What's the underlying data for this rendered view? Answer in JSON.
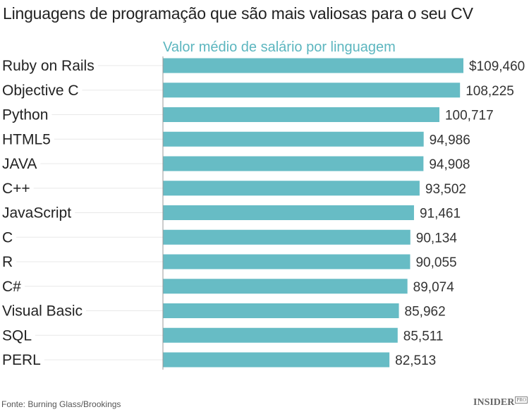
{
  "chart_data": {
    "type": "bar",
    "orientation": "horizontal",
    "title": "Linguagens de programação que são mais valiosas para o seu CV",
    "subtitle": "Valor médio de salário por linguagem",
    "categories": [
      "Ruby on Rails",
      "Objective C",
      "Python",
      "HTML5",
      "JAVA",
      "C++",
      "JavaScript",
      "C",
      "R",
      "C#",
      "Visual Basic",
      "SQL",
      "PERL"
    ],
    "values": [
      109460,
      108225,
      100717,
      94986,
      94908,
      93502,
      91461,
      90134,
      90055,
      89074,
      85962,
      85511,
      82513
    ],
    "value_labels": [
      "$109,460",
      "108,225",
      "100,717",
      "94,986",
      "94,908",
      "93,502",
      "91,461",
      "90,134",
      "90,055",
      "89,074",
      "85,962",
      "85,511",
      "82,513"
    ],
    "xlim": [
      0,
      133000
    ],
    "bar_color": "#67bcc5",
    "grid": false
  },
  "footer": {
    "source": "Fonte: Burning Glass/Brookings",
    "logo": "INSIDER",
    "logo_badge": "PRO"
  }
}
